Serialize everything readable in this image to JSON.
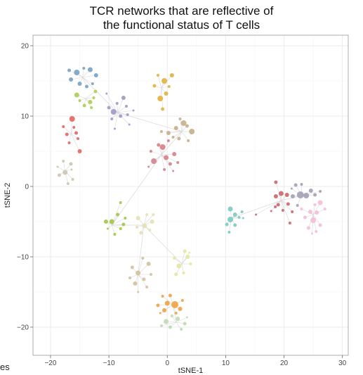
{
  "chart_data": {
    "type": "scatter",
    "title_lines": [
      "TCR networks that are reflective of",
      "the functional status of T cells"
    ],
    "xlabel": "tSNE-1",
    "ylabel": "tSNE-2",
    "xlim": [
      -23,
      31
    ],
    "ylim": [
      -24,
      21.5
    ],
    "xticks": [
      -20,
      -10,
      0,
      10,
      20,
      30
    ],
    "yticks": [
      -20,
      -10,
      0,
      10,
      20
    ],
    "xtick_labels": [
      "−20",
      "−10",
      "0",
      "10",
      "20",
      "30"
    ],
    "ytick_labels": [
      "−20",
      "−10",
      "0",
      "10",
      "20"
    ],
    "grid": true,
    "edge_color": "#d8d8d8",
    "clusters": [
      {
        "color": "#7ea7c7",
        "center": [
          -14.5,
          15.5
        ],
        "points": [
          [
            -15.5,
            16.2,
            4
          ],
          [
            -13.2,
            16.6,
            3.5
          ],
          [
            -16.5,
            15.2,
            3
          ],
          [
            -12.2,
            15.8,
            3
          ],
          [
            -15.0,
            14.6,
            3
          ],
          [
            -13.8,
            14.2,
            2.5
          ],
          [
            -16.8,
            16.5,
            2.5
          ],
          [
            -12.8,
            14.6,
            2
          ],
          [
            -14.3,
            16.8,
            2
          ]
        ]
      },
      {
        "color": "#b2cf5c",
        "center": [
          -14,
          12.5
        ],
        "points": [
          [
            -15.5,
            13.0,
            3.5
          ],
          [
            -13.2,
            12.0,
            3
          ],
          [
            -12.3,
            13.5,
            2.5
          ],
          [
            -14.2,
            11.5,
            2.5
          ],
          [
            -13.0,
            11.2,
            2
          ],
          [
            -15.0,
            12.2,
            2
          ],
          [
            -12.6,
            12.6,
            2
          ]
        ]
      },
      {
        "color": "#a99bcb",
        "center": [
          -8.5,
          10.5
        ],
        "points": [
          [
            -9.2,
            10.6,
            4
          ],
          [
            -7.5,
            12.6,
            3
          ],
          [
            -8.0,
            10.0,
            2.5
          ],
          [
            -10.0,
            11.2,
            2.5
          ],
          [
            -7.0,
            11.4,
            2
          ],
          [
            -9.5,
            9.6,
            2
          ],
          [
            -6.8,
            10.2,
            2
          ],
          [
            -8.6,
            11.8,
            2
          ],
          [
            -10.4,
            13.2,
            1.5
          ],
          [
            -6.5,
            8.8,
            1.5
          ],
          [
            -9.0,
            8.2,
            1.5
          ],
          [
            -5.8,
            10.8,
            1.5
          ]
        ]
      },
      {
        "color": "#e3b54a",
        "center": [
          -1,
          14
        ],
        "points": [
          [
            -0.5,
            15.0,
            4
          ],
          [
            -1.2,
            12.5,
            4
          ],
          [
            0.8,
            15.8,
            3
          ],
          [
            -0.2,
            13.2,
            3
          ],
          [
            -2.2,
            14.3,
            2.5
          ],
          [
            -0.8,
            11.0,
            2.5
          ],
          [
            0.3,
            14.2,
            2
          ],
          [
            -1.6,
            15.8,
            2
          ]
        ]
      },
      {
        "color": "#e46e68",
        "center": [
          -16.5,
          7.5
        ],
        "points": [
          [
            -16.3,
            9.6,
            4
          ],
          [
            -15.0,
            5.0,
            3
          ],
          [
            -17.2,
            7.4,
            2.5
          ],
          [
            -15.6,
            7.6,
            2.5
          ],
          [
            -16.8,
            6.2,
            2
          ],
          [
            -17.8,
            8.5,
            2
          ],
          [
            -15.3,
            6.8,
            2
          ],
          [
            -16.0,
            8.4,
            2
          ]
        ]
      },
      {
        "color": "#cfc8b3",
        "center": [
          -17.5,
          2.2
        ],
        "points": [
          [
            -17.5,
            2.0,
            3.5
          ],
          [
            -16.5,
            3.2,
            2.5
          ],
          [
            -18.5,
            1.6,
            2.5
          ],
          [
            -16.2,
            1.0,
            2
          ],
          [
            -17.8,
            3.6,
            2
          ],
          [
            -17.0,
            0.4,
            2
          ],
          [
            -18.8,
            2.8,
            1.5
          ],
          [
            -16.4,
            2.4,
            1.5
          ]
        ]
      },
      {
        "color": "#c9b28f",
        "center": [
          2.5,
          7.8
        ],
        "points": [
          [
            2.8,
            9.0,
            4
          ],
          [
            4.2,
            7.8,
            4
          ],
          [
            0.2,
            7.6,
            3
          ],
          [
            1.5,
            8.3,
            3
          ],
          [
            3.4,
            8.6,
            2.5
          ],
          [
            2.0,
            6.8,
            2.5
          ],
          [
            1.0,
            7.0,
            2
          ],
          [
            -1.0,
            7.8,
            2
          ],
          [
            3.6,
            6.5,
            2
          ],
          [
            2.2,
            9.6,
            2
          ]
        ]
      },
      {
        "color": "#d8868f",
        "center": [
          -1,
          4.5
        ],
        "points": [
          [
            -0.8,
            5.6,
            4
          ],
          [
            -2.3,
            3.6,
            4
          ],
          [
            -0.2,
            4.1,
            3.5
          ],
          [
            1.2,
            4.6,
            3
          ],
          [
            -1.5,
            5.9,
            2.5
          ],
          [
            0.5,
            3.2,
            2.5
          ],
          [
            -2.8,
            5.0,
            2
          ],
          [
            1.8,
            3.4,
            2
          ],
          [
            -0.5,
            2.4,
            2
          ],
          [
            0.2,
            6.5,
            2
          ],
          [
            -3.2,
            2.8,
            1.5
          ],
          [
            1.0,
            2.2,
            1.5
          ]
        ]
      },
      {
        "color": "#a5c94e",
        "center": [
          -9.5,
          -5.5
        ],
        "points": [
          [
            -9.5,
            -5.0,
            3.5
          ],
          [
            -10.5,
            -5.0,
            3
          ],
          [
            -7.5,
            -5.4,
            2.5
          ],
          [
            -8.5,
            -4.0,
            2.5
          ],
          [
            -9.0,
            -6.8,
            2
          ],
          [
            -8.0,
            -6.0,
            2
          ],
          [
            -7.2,
            -4.5,
            2
          ],
          [
            -8.0,
            -2.3,
            2
          ],
          [
            -10.2,
            -6.0,
            1.5
          ]
        ]
      },
      {
        "color": "#e7e3b5",
        "center": [
          -4,
          -5.5
        ],
        "points": [
          [
            -3.9,
            -5.6,
            3.5
          ],
          [
            -5.0,
            -4.5,
            3
          ],
          [
            -2.6,
            -5.0,
            3
          ],
          [
            -4.5,
            -6.6,
            2.5
          ],
          [
            -3.0,
            -6.2,
            2
          ],
          [
            -5.2,
            -5.8,
            2
          ],
          [
            -3.5,
            -4.0,
            2
          ],
          [
            -2.4,
            -4.0,
            2
          ]
        ]
      },
      {
        "color": "#d4c4a0",
        "center": [
          -5,
          -12.5
        ],
        "points": [
          [
            -5.0,
            -12.3,
            3.5
          ],
          [
            -3.2,
            -11.0,
            3
          ],
          [
            -5.5,
            -13.8,
            3
          ],
          [
            -4.0,
            -13.2,
            2.5
          ],
          [
            -6.0,
            -11.5,
            2.5
          ],
          [
            -2.8,
            -12.5,
            2
          ],
          [
            -4.2,
            -10.2,
            2
          ],
          [
            -6.4,
            -13.0,
            2
          ],
          [
            -3.5,
            -14.3,
            2
          ],
          [
            -5.0,
            -15.0,
            1.5
          ]
        ]
      },
      {
        "color": "#e6e8a2",
        "center": [
          2.5,
          -11
        ],
        "points": [
          [
            2.0,
            -11.3,
            3.5
          ],
          [
            3.5,
            -10.0,
            3
          ],
          [
            1.5,
            -12.5,
            2.5
          ],
          [
            3.0,
            -9.2,
            2.5
          ],
          [
            4.0,
            -11.0,
            2
          ],
          [
            2.8,
            -12.3,
            2
          ],
          [
            1.2,
            -10.2,
            2
          ],
          [
            3.8,
            -9.4,
            1.5
          ]
        ]
      },
      {
        "color": "#f0a74e",
        "center": [
          1,
          -16.8
        ],
        "points": [
          [
            1.3,
            -16.8,
            5
          ],
          [
            0.0,
            -16.6,
            3.5
          ],
          [
            -0.5,
            -17.6,
            3
          ],
          [
            2.2,
            -17.4,
            3
          ],
          [
            -1.6,
            -16.9,
            2.5
          ],
          [
            0.5,
            -15.5,
            2.5
          ],
          [
            2.6,
            -16.2,
            2
          ],
          [
            -0.8,
            -15.6,
            2
          ],
          [
            1.5,
            -18.0,
            2
          ],
          [
            -1.2,
            -18.0,
            1.5
          ]
        ]
      },
      {
        "color": "#c0ddb6",
        "center": [
          1.5,
          -19.3
        ],
        "points": [
          [
            -0.2,
            -19.2,
            3.5
          ],
          [
            1.8,
            -18.8,
            3
          ],
          [
            0.5,
            -20.0,
            2.5
          ],
          [
            3.0,
            -19.5,
            2.5
          ],
          [
            -1.0,
            -19.8,
            2
          ],
          [
            2.4,
            -20.3,
            2
          ],
          [
            0.8,
            -18.4,
            2
          ],
          [
            3.4,
            -18.6,
            1.5
          ]
        ]
      },
      {
        "color": "#7fcfc4",
        "center": [
          11,
          -4.5
        ],
        "points": [
          [
            10.8,
            -4.7,
            4
          ],
          [
            10.8,
            -3.2,
            3.5
          ],
          [
            11.6,
            -4.0,
            3
          ],
          [
            10.2,
            -5.4,
            2.5
          ],
          [
            11.6,
            -5.5,
            2.5
          ],
          [
            12.3,
            -4.4,
            2
          ],
          [
            10.6,
            -6.5,
            2
          ],
          [
            12.8,
            -3.6,
            2
          ],
          [
            13.0,
            -4.5,
            1.5
          ]
        ]
      },
      {
        "color": "#cd6f73",
        "center": [
          19.5,
          -2.0
        ],
        "points": [
          [
            19.5,
            -1.0,
            3.5
          ],
          [
            20.5,
            -1.2,
            3
          ],
          [
            18.6,
            -1.4,
            3
          ],
          [
            19.0,
            -2.6,
            2.5
          ],
          [
            20.7,
            -2.5,
            2.5
          ],
          [
            18.6,
            0.6,
            2.5
          ],
          [
            19.8,
            -3.4,
            2
          ],
          [
            21.4,
            -3.6,
            2
          ],
          [
            21.0,
            -5.2,
            2
          ],
          [
            18.5,
            -2.9,
            2
          ],
          [
            15.2,
            -4.0,
            1.5
          ],
          [
            17.8,
            -3.5,
            1.5
          ]
        ]
      },
      {
        "color": "#a9a3b8",
        "center": [
          23,
          -1.3
        ],
        "points": [
          [
            22.8,
            -1.2,
            5
          ],
          [
            23.8,
            -1.3,
            4
          ],
          [
            21.5,
            -1.4,
            3
          ],
          [
            24.6,
            -0.6,
            3
          ],
          [
            22.0,
            0.2,
            2.5
          ],
          [
            25.3,
            -1.2,
            2.5
          ],
          [
            22.3,
            -2.7,
            2
          ],
          [
            23.0,
            0.3,
            2
          ],
          [
            26.2,
            -0.7,
            2
          ],
          [
            21.3,
            -0.3,
            1.5
          ]
        ]
      },
      {
        "color": "#f5bfdc",
        "center": [
          25,
          -4.0
        ],
        "points": [
          [
            25.0,
            -4.8,
            4
          ],
          [
            26.2,
            -2.3,
            3.5
          ],
          [
            24.5,
            -3.6,
            3
          ],
          [
            25.6,
            -3.7,
            3
          ],
          [
            23.6,
            -4.4,
            2.5
          ],
          [
            26.2,
            -5.5,
            2.5
          ],
          [
            24.2,
            -5.9,
            2.5
          ],
          [
            25.3,
            -2.6,
            2
          ],
          [
            27.0,
            -3.2,
            2
          ],
          [
            23.0,
            -3.2,
            2
          ],
          [
            25.5,
            -6.4,
            2
          ],
          [
            24.8,
            -6.7,
            1.5
          ]
        ]
      }
    ],
    "links": [
      [
        2,
        6
      ],
      [
        6,
        7
      ],
      [
        7,
        8
      ],
      [
        8,
        9
      ],
      [
        9,
        10
      ],
      [
        2,
        0
      ],
      [
        15,
        16
      ],
      [
        14,
        15
      ],
      [
        12,
        13
      ],
      [
        9,
        11
      ]
    ]
  },
  "overflow_text": "es"
}
